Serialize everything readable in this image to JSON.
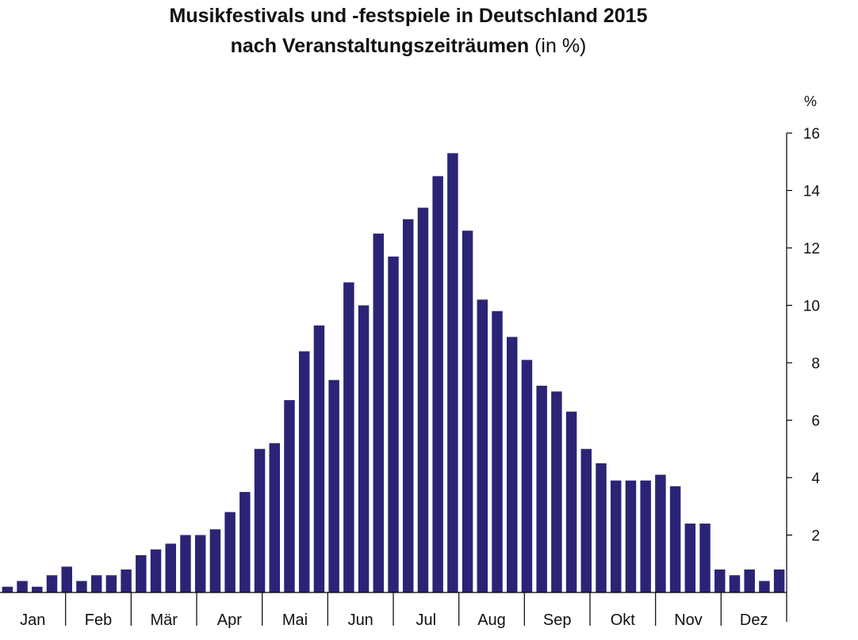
{
  "title_line1": "Musikfestivals und -festspiele in Deutschland 2015",
  "title_line2_bold": "nach Veranstaltungszeiträumen",
  "title_line2_normal": " (in %)",
  "colors": {
    "bar": "#2b2476",
    "axis": "#000000"
  },
  "chart_data": {
    "type": "bar",
    "title": "Musikfestivals und -festspiele in Deutschland 2015 nach Veranstaltungszeiträumen (in %)",
    "y_unit_label": "%",
    "ylim": [
      0,
      16
    ],
    "yticks": [
      2,
      4,
      6,
      8,
      10,
      12,
      14,
      16
    ],
    "grid": false,
    "months": [
      "Jan",
      "Feb",
      "Mär",
      "Apr",
      "Mai",
      "Jun",
      "Jul",
      "Aug",
      "Sep",
      "Okt",
      "Nov",
      "Dez"
    ],
    "values": [
      0.2,
      0.4,
      0.2,
      0.6,
      0.9,
      0.4,
      0.6,
      0.6,
      0.8,
      1.3,
      1.5,
      1.7,
      2.0,
      2.0,
      2.2,
      2.8,
      3.5,
      5.0,
      5.2,
      6.7,
      8.4,
      9.3,
      7.4,
      10.8,
      10.0,
      12.5,
      11.7,
      13.0,
      13.4,
      14.5,
      15.3,
      12.6,
      10.2,
      9.8,
      8.9,
      8.1,
      7.2,
      7.0,
      6.3,
      5.0,
      4.5,
      3.9,
      3.9,
      3.9,
      4.1,
      3.7,
      2.4,
      2.4,
      0.8,
      0.6,
      0.8,
      0.4,
      0.8
    ]
  }
}
